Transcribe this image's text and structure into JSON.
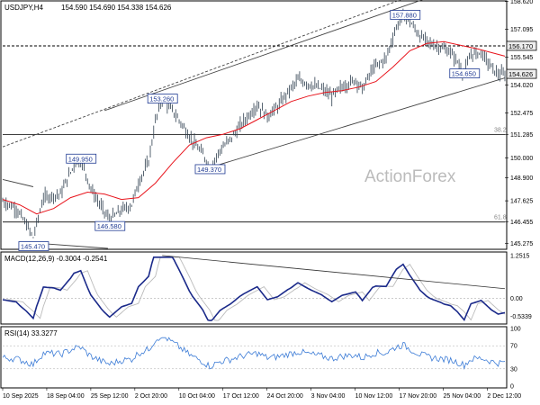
{
  "header": {
    "symbol": "USDJPY,H4",
    "quote": "154.590 154.690 154.338 154.626"
  },
  "watermark": "ActionForex",
  "chart_data": {
    "type": "candlestick",
    "price_scale": {
      "min": 145.0,
      "max": 158.6,
      "ticks": [
        "158.620",
        "157.095",
        "155.545",
        "154.020",
        "152.475",
        "151.285",
        "150.000",
        "148.900",
        "147.625",
        "146.455",
        "145.275"
      ]
    },
    "x_labels": [
      "10 Sep 2025",
      "18 Sep 04:00",
      "25 Sep 12:00",
      "2 Oct 20:00",
      "10 Oct 04:00",
      "17 Oct 12:00",
      "24 Oct 20:00",
      "3 Nov 04:00",
      "10 Nov 12:00",
      "17 Nov 20:00",
      "25 Nov 04:00",
      "2 Dec 12:00"
    ],
    "price_path": [
      [
        0,
        147.6
      ],
      [
        8,
        147.2
      ],
      [
        14,
        146.3
      ],
      [
        18,
        145.6
      ],
      [
        24,
        147.8
      ],
      [
        34,
        148.0
      ],
      [
        42,
        149.6
      ],
      [
        46,
        149.9
      ],
      [
        52,
        148.3
      ],
      [
        58,
        147.3
      ],
      [
        63,
        146.6
      ],
      [
        70,
        147.1
      ],
      [
        76,
        147.4
      ],
      [
        80,
        148.6
      ],
      [
        86,
        149.8
      ],
      [
        90,
        152.0
      ],
      [
        94,
        153.3
      ],
      [
        100,
        152.6
      ],
      [
        106,
        151.8
      ],
      [
        112,
        150.9
      ],
      [
        118,
        150.2
      ],
      [
        122,
        149.4
      ],
      [
        128,
        150.4
      ],
      [
        134,
        151.0
      ],
      [
        142,
        152.0
      ],
      [
        150,
        152.9
      ],
      [
        156,
        152.3
      ],
      [
        162,
        152.8
      ],
      [
        168,
        153.6
      ],
      [
        174,
        154.3
      ],
      [
        182,
        154.0
      ],
      [
        188,
        153.8
      ],
      [
        194,
        153.4
      ],
      [
        200,
        153.9
      ],
      [
        208,
        154.3
      ],
      [
        212,
        153.8
      ],
      [
        218,
        154.9
      ],
      [
        226,
        155.5
      ],
      [
        232,
        157.2
      ],
      [
        236,
        157.9
      ],
      [
        240,
        157.5
      ],
      [
        246,
        156.7
      ],
      [
        252,
        156.3
      ],
      [
        258,
        156.1
      ],
      [
        264,
        155.8
      ],
      [
        268,
        155.3
      ],
      [
        272,
        154.65
      ],
      [
        276,
        155.7
      ],
      [
        282,
        155.8
      ],
      [
        288,
        155.0
      ],
      [
        292,
        154.6
      ],
      [
        296,
        154.6
      ]
    ],
    "ma_path": [
      [
        0,
        147.7
      ],
      [
        10,
        147.4
      ],
      [
        20,
        146.9
      ],
      [
        30,
        147.2
      ],
      [
        40,
        147.8
      ],
      [
        50,
        148.1
      ],
      [
        60,
        148.0
      ],
      [
        70,
        147.7
      ],
      [
        80,
        147.8
      ],
      [
        90,
        148.6
      ],
      [
        100,
        149.7
      ],
      [
        110,
        150.7
      ],
      [
        120,
        151.1
      ],
      [
        130,
        151.3
      ],
      [
        140,
        151.6
      ],
      [
        150,
        152.1
      ],
      [
        160,
        152.6
      ],
      [
        170,
        153.1
      ],
      [
        180,
        153.4
      ],
      [
        190,
        153.6
      ],
      [
        200,
        153.7
      ],
      [
        210,
        153.9
      ],
      [
        220,
        154.2
      ],
      [
        230,
        155.0
      ],
      [
        240,
        155.9
      ],
      [
        250,
        156.3
      ],
      [
        260,
        156.4
      ],
      [
        270,
        156.2
      ],
      [
        280,
        156.0
      ],
      [
        288,
        155.8
      ],
      [
        296,
        155.6
      ]
    ],
    "labels": [
      {
        "text": "157.880",
        "price": 157.88,
        "t": 237
      },
      {
        "text": "156.170",
        "price": 156.17,
        "t": -1
      },
      {
        "text": "154.650",
        "price": 154.65,
        "t": 272
      },
      {
        "text": "154.626",
        "price": 154.626,
        "t": -2
      },
      {
        "text": "153.260",
        "price": 153.26,
        "t": 94
      },
      {
        "text": "149.950",
        "price": 149.95,
        "t": 46
      },
      {
        "text": "149.370",
        "price": 149.37,
        "t": 122
      },
      {
        "text": "146.580",
        "price": 146.58,
        "t": 63
      },
      {
        "text": "145.470",
        "price": 145.47,
        "t": 18
      }
    ],
    "levels": [
      {
        "price": 156.17,
        "style": "dashed",
        "label": ""
      },
      {
        "price": 151.285,
        "style": "solid",
        "label": "38.2"
      },
      {
        "price": 146.455,
        "style": "solid",
        "label": "61.8"
      }
    ],
    "macd": {
      "title": "MACD(12,26,9) -0.3004 -0.2541",
      "ticks": [
        "1.2515",
        "0.00",
        "-0.5339"
      ],
      "range": [
        -0.7,
        1.3
      ]
    },
    "rsi": {
      "title": "RSI(14) 33.3277",
      "ticks": [
        "100",
        "70",
        "30",
        "0"
      ],
      "range": [
        0,
        100
      ]
    }
  }
}
